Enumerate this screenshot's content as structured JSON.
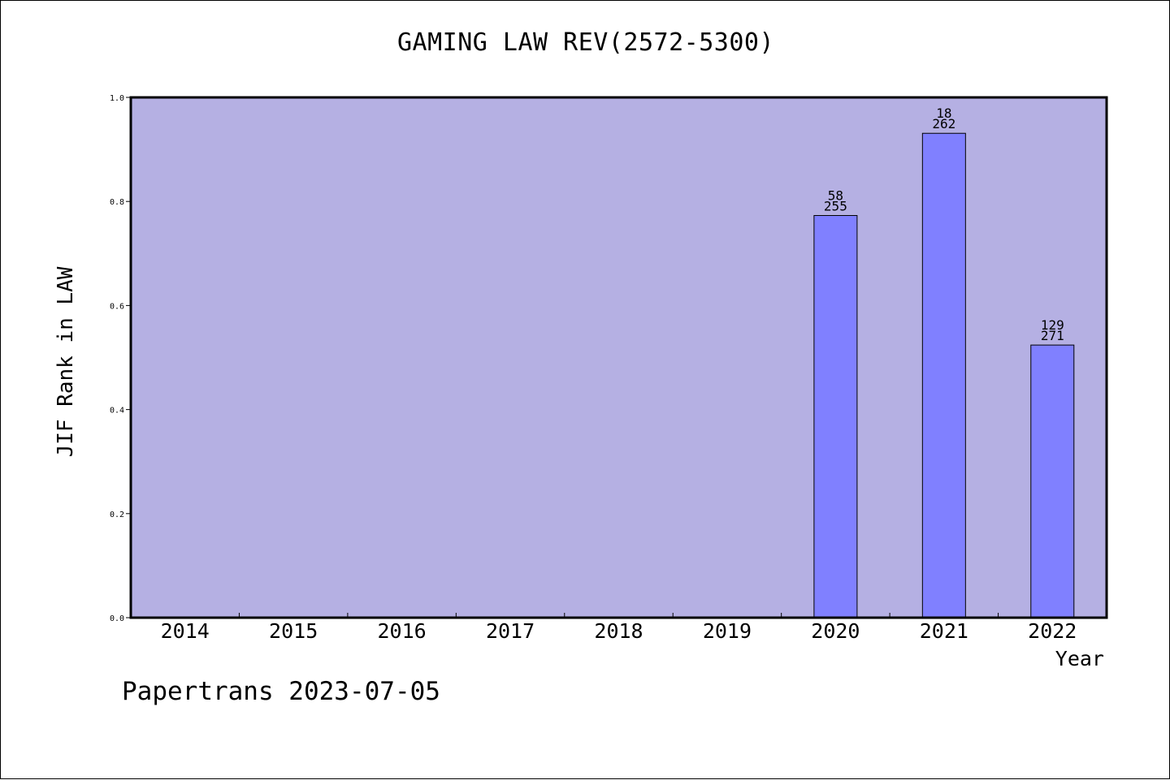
{
  "title": "GAMING LAW REV(2572-5300)",
  "watermark": "Papertrans 2023-07-05",
  "colors": {
    "plot_background": "#b5b0e3",
    "bar_fill": "#8080ff",
    "bar_stroke": "#000000",
    "axis": "#000000"
  },
  "chart_data": {
    "type": "bar",
    "title": "GAMING LAW REV(2572-5300)",
    "xlabel": "Year",
    "ylabel": "JIF Rank in LAW",
    "categories": [
      "2014",
      "2015",
      "2016",
      "2017",
      "2018",
      "2019",
      "2020",
      "2021",
      "2022"
    ],
    "ylim": [
      0,
      1.0
    ],
    "yticks": [
      "0.0",
      "0.2",
      "0.4",
      "0.6",
      "0.8",
      "1.0"
    ],
    "grid": false,
    "bars": [
      {
        "category": "2020",
        "value": 0.773,
        "rank": "58",
        "total": "255"
      },
      {
        "category": "2021",
        "value": 0.931,
        "rank": "18",
        "total": "262"
      },
      {
        "category": "2022",
        "value": 0.524,
        "rank": "129",
        "total": "271"
      }
    ]
  }
}
